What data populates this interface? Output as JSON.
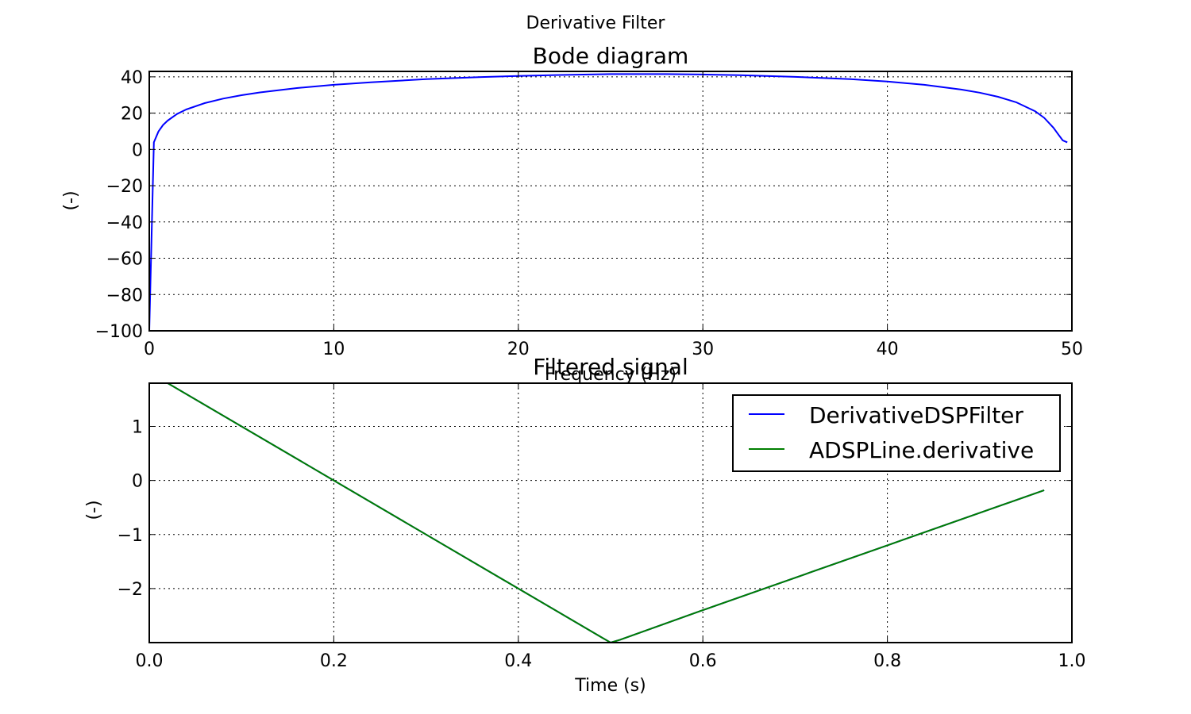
{
  "figure": {
    "suptitle": "Derivative Filter"
  },
  "chart_data": [
    {
      "type": "line",
      "title": "Bode diagram",
      "xlabel": "Frequency (Hz)",
      "ylabel": "(-)",
      "xlim": [
        0,
        50
      ],
      "ylim": [
        -100,
        43
      ],
      "xticks": [
        0,
        10,
        20,
        30,
        40,
        50
      ],
      "xtick_labels": [
        "0",
        "10",
        "20",
        "30",
        "40",
        "50"
      ],
      "yticks": [
        -100,
        -80,
        -60,
        -40,
        -20,
        0,
        20,
        40
      ],
      "ytick_labels": [
        "−100",
        "−80",
        "−60",
        "−40",
        "−20",
        "0",
        "20",
        "40"
      ],
      "grid": true,
      "series": [
        {
          "color": "#0000ff",
          "x": [
            0,
            0.25,
            0.5,
            0.75,
            1,
            1.5,
            2,
            3,
            4,
            5,
            6,
            8,
            10,
            12,
            15,
            18,
            20,
            22,
            25,
            28,
            30,
            32,
            35,
            38,
            40,
            42,
            44,
            45,
            46,
            47,
            48,
            48.5,
            49,
            49.25,
            49.5,
            49.75
          ],
          "y": [
            -100,
            3.9,
            9.9,
            13.5,
            15.9,
            19.5,
            22.0,
            25.5,
            28.0,
            29.9,
            31.4,
            33.8,
            35.6,
            37.0,
            38.7,
            39.9,
            40.5,
            41.0,
            41.5,
            41.5,
            41.3,
            40.9,
            40.0,
            38.7,
            37.4,
            35.6,
            33.0,
            31.3,
            29.0,
            25.9,
            21.1,
            17.4,
            11.9,
            8.4,
            5.0,
            3.9
          ]
        }
      ]
    },
    {
      "type": "line",
      "title": "Filtered signal",
      "xlabel": "Time (s)",
      "ylabel": "(-)",
      "xlim": [
        0.0,
        1.0
      ],
      "ylim": [
        -3.0,
        1.8
      ],
      "xticks": [
        0.0,
        0.2,
        0.4,
        0.6,
        0.8,
        1.0
      ],
      "xtick_labels": [
        "0.0",
        "0.2",
        "0.4",
        "0.6",
        "0.8",
        "1.0"
      ],
      "yticks": [
        -2,
        -1,
        0,
        1
      ],
      "ytick_labels": [
        "−2",
        "−1",
        "0",
        "1"
      ],
      "grid": true,
      "legend_position": "upper right",
      "series": [
        {
          "name": "DerivativeDSPFilter",
          "color": "#0000ff",
          "x": [
            0.0,
            0.2,
            0.4,
            0.49,
            0.5,
            0.51,
            0.6,
            0.8,
            0.97
          ],
          "y": [
            2.0,
            0.0,
            -2.0,
            -2.9,
            -3.0,
            -2.95,
            -2.4,
            -1.2,
            -0.18
          ]
        },
        {
          "name": "ADSPLine.derivative",
          "color": "#007f00",
          "x": [
            0.0,
            0.2,
            0.4,
            0.49,
            0.5,
            0.51,
            0.6,
            0.8,
            0.97
          ],
          "y": [
            2.0,
            0.0,
            -2.0,
            -2.9,
            -3.0,
            -2.95,
            -2.4,
            -1.2,
            -0.18
          ]
        }
      ]
    }
  ]
}
